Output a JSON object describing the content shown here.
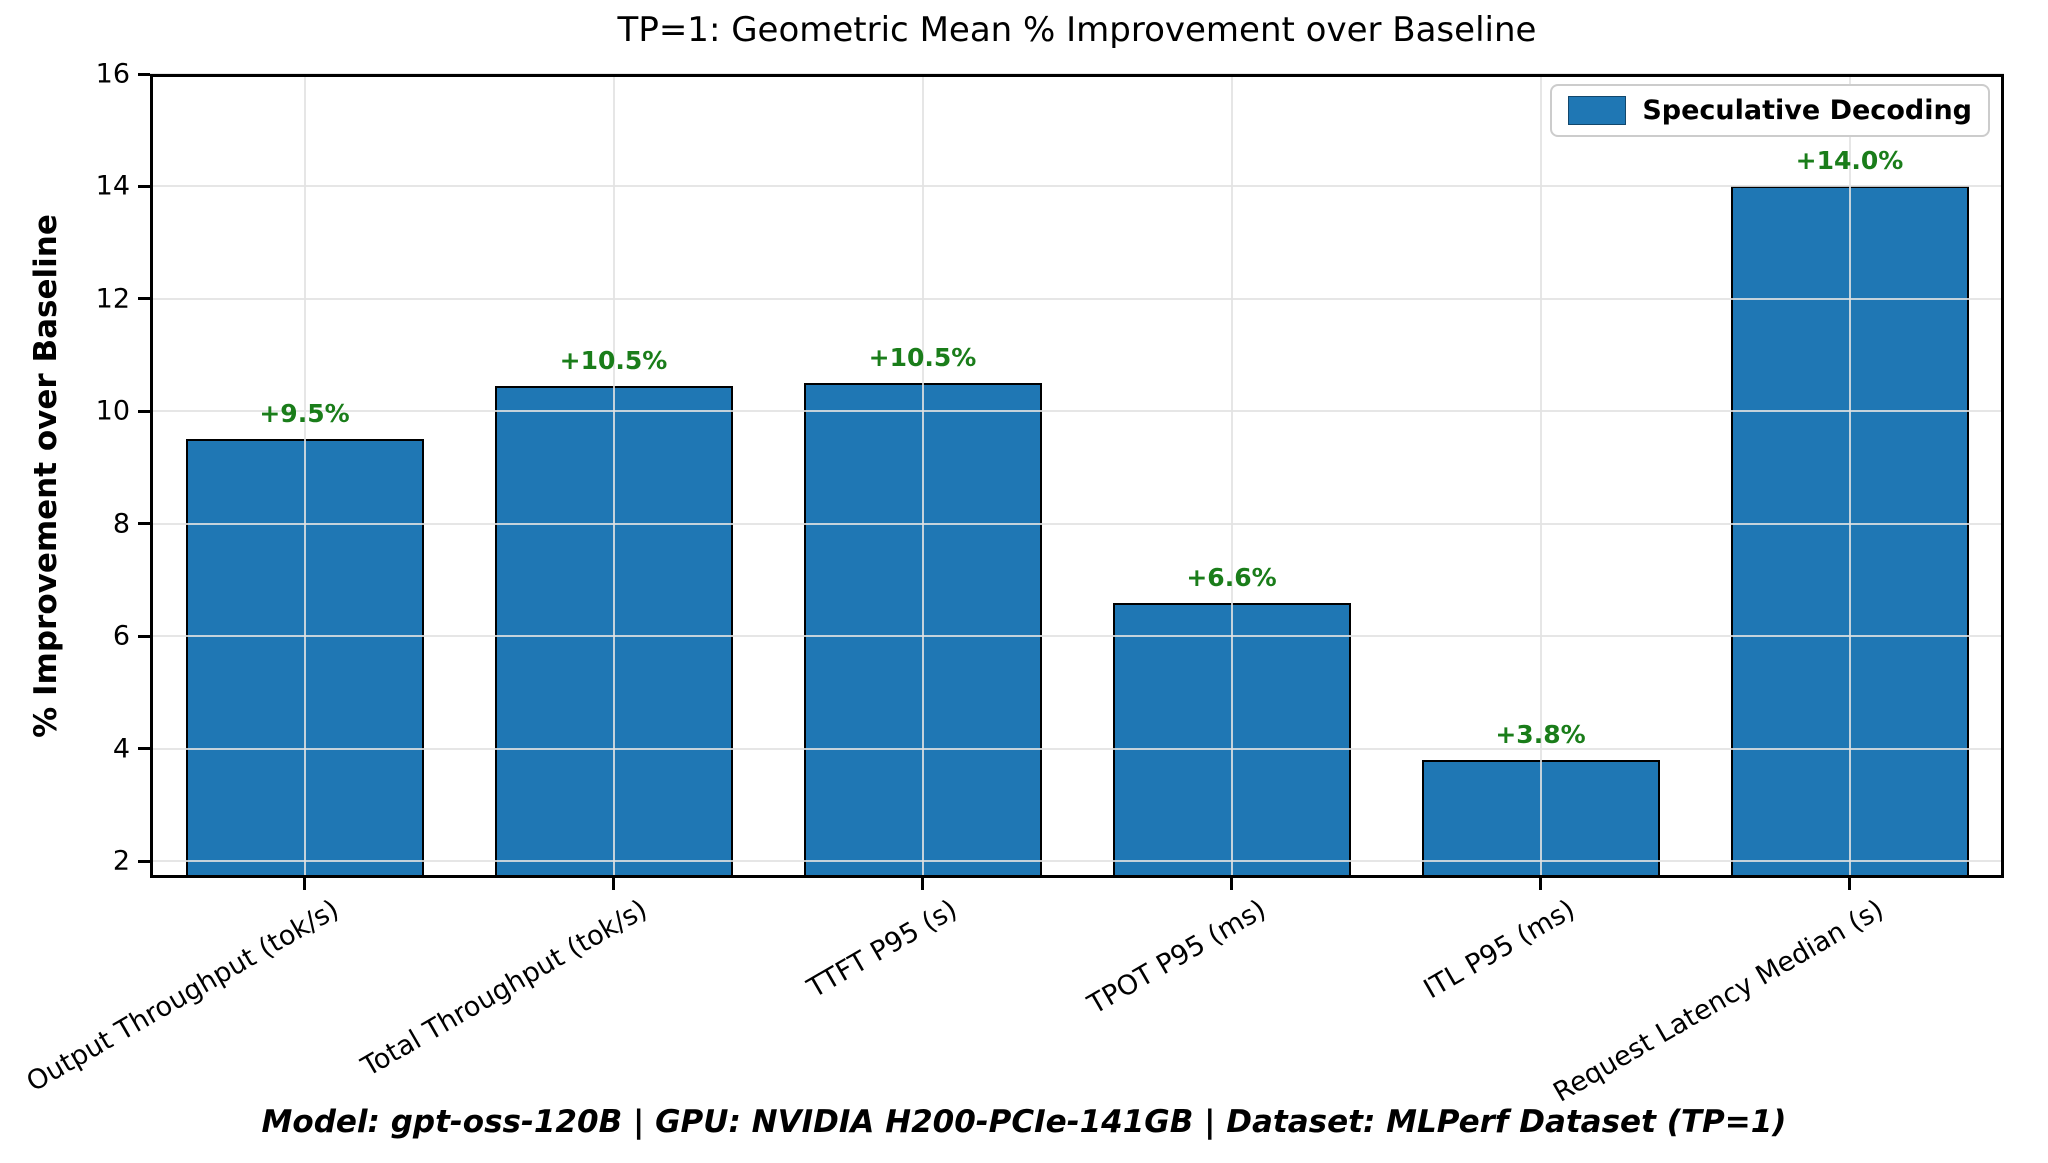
{
  "title": "TP=1: Geometric Mean % Improvement over Baseline",
  "footer": "Model: gpt-oss-120B | GPU: NVIDIA H200-PCIe-141GB | Dataset: MLPerf Dataset (TP=1)",
  "legend": {
    "label": "Speculative Decoding",
    "swatch_color": "#1f77b4",
    "position": "upper right"
  },
  "chart_data": {
    "type": "bar",
    "title": "TP=1: Geometric Mean % Improvement over Baseline",
    "categories": [
      "Output Throughput (tok/s)",
      "Total Throughput (tok/s)",
      "TTFT P95 (s)",
      "TPOT P95 (ms)",
      "ITL P95 (ms)",
      "Request Latency Median (s)"
    ],
    "values": [
      9.5,
      10.45,
      10.5,
      6.6,
      3.8,
      14.0
    ],
    "bar_labels": [
      "+9.5%",
      "+10.5%",
      "+10.5%",
      "+6.6%",
      "+3.8%",
      "+14.0%"
    ],
    "xlabel": "",
    "ylabel": "% Improvement over Baseline",
    "ylim": [
      1.7,
      16
    ],
    "yticks": [
      2,
      4,
      6,
      8,
      10,
      12,
      14,
      16
    ],
    "grid": true,
    "legend": [
      "Speculative Decoding"
    ],
    "legend_position": "upper right",
    "bar_color": "#1f77b4",
    "bar_edge_color": "#000000",
    "value_label_color": "#1a7d1a",
    "xtick_rotation_deg": 30
  }
}
